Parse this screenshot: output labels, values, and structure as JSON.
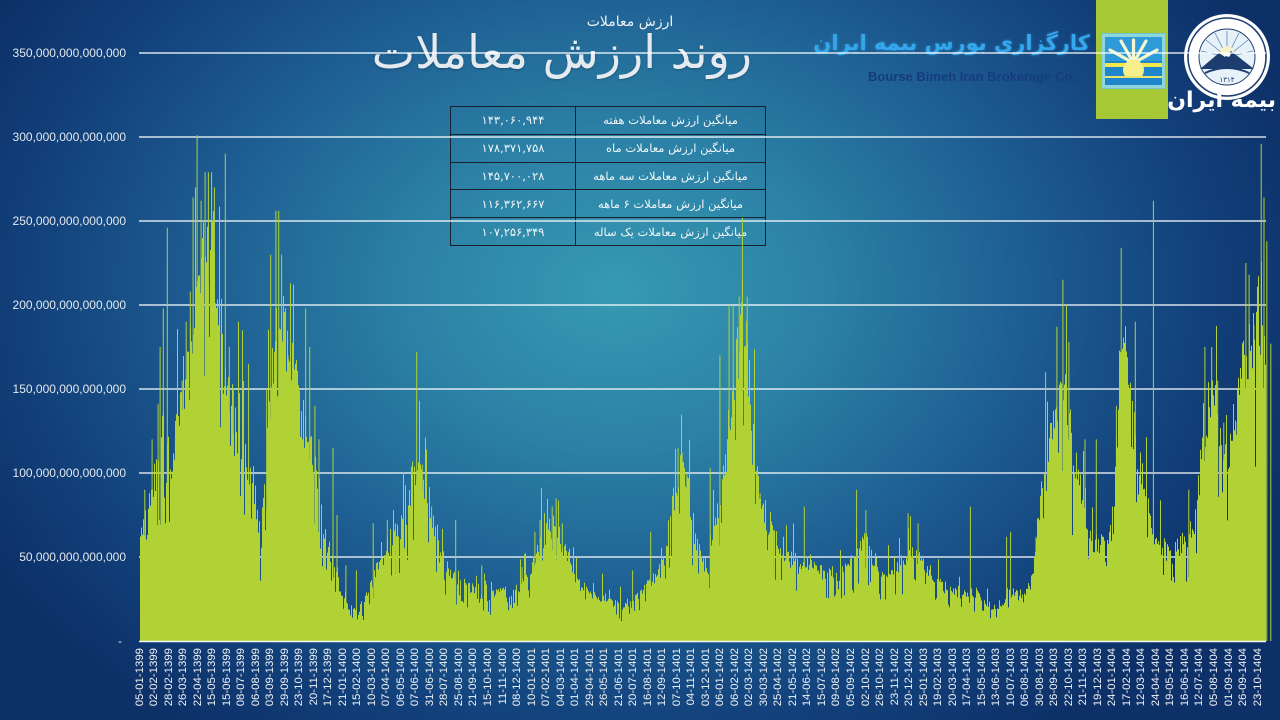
{
  "header": {
    "subtitle": "ارزش معاملات",
    "title": "روند ارزش معاملات"
  },
  "brand": {
    "name_fa": "کارگزاری بورس بیمه ایران",
    "name_en": "Bourse Bimeh Iran Brokerage Co.",
    "parent_logo_text": "بیمه ایران",
    "parent_logo_year": "۱۳۱۴",
    "colors": {
      "brand_green": "#a5c834",
      "brand_cyan": "#33a8ee",
      "brand_navy": "#163c7c"
    }
  },
  "stats_table": {
    "rows": [
      {
        "label": "میانگین ارزش معاملات هفته",
        "value": "۱۴۳,۰۶۰,۹۴۴"
      },
      {
        "label": "میانگین ارزش معاملات ماه",
        "value": "۱۷۸,۳۷۱,۷۵۸"
      },
      {
        "label": "میانگین ارزش معاملات سه ماهه",
        "value": "۱۴۵,۷۰۰,۰۲۸"
      },
      {
        "label": "میانگین ارزش معاملات ۶ ماهه",
        "value": "۱۱۶,۳۶۲,۶۶۷"
      },
      {
        "label": "میانگین ارزش معاملات یک ساله",
        "value": "۱۰۷,۲۵۶,۳۴۹"
      }
    ]
  },
  "chart_data": {
    "type": "bar",
    "title": "ارزش معاملات",
    "xlabel": "",
    "ylabel": "",
    "ylim": [
      0,
      350000000000000
    ],
    "grid": true,
    "legend": null,
    "colors": {
      "bar": "#b0d234",
      "gridline": "#ffffff",
      "axis_text": "#e3e9ef"
    },
    "y_ticks": [
      0,
      50000000000000,
      100000000000000,
      150000000000000,
      200000000000000,
      250000000000000,
      300000000000000,
      350000000000000
    ],
    "y_tick_labels": [
      "-",
      "50,000,000,000,000",
      "100,000,000,000,000",
      "150,000,000,000,000",
      "200,000,000,000,000",
      "250,000,000,000,000",
      "300,000,000,000,000",
      "350,000,000,000,000"
    ],
    "x_tick_labels": [
      "05-01-1399",
      "02-02-1399",
      "28-02-1399",
      "26-03-1399",
      "22-04-1399",
      "15-05-1399",
      "15-06-1399",
      "08-07-1399",
      "06-08-1399",
      "03-09-1399",
      "29-09-1399",
      "23-10-1399",
      "20-11-1399",
      "17-12-1399",
      "21-01-1400",
      "15-02-1400",
      "10-03-1400",
      "07-04-1400",
      "06-05-1400",
      "07-06-1400",
      "31-06-1400",
      "28-07-1400",
      "25-08-1400",
      "21-09-1400",
      "15-10-1400",
      "11-11-1400",
      "08-12-1400",
      "10-01-1401",
      "07-02-1401",
      "04-03-1401",
      "01-04-1401",
      "29-04-1401",
      "26-05-1401",
      "21-06-1401",
      "20-07-1401",
      "16-08-1401",
      "12-09-1401",
      "07-10-1401",
      "04-11-1401",
      "03-12-1401",
      "06-01-1402",
      "06-02-1402",
      "02-03-1402",
      "30-03-1402",
      "25-04-1402",
      "21-05-1402",
      "14-06-1402",
      "15-07-1402",
      "09-08-1402",
      "05-09-1402",
      "02-10-1402",
      "26-10-1402",
      "23-11-1402",
      "20-12-1402",
      "25-01-1403",
      "19-02-1403",
      "20-03-1403",
      "17-04-1403",
      "15-05-1403",
      "13-06-1403",
      "10-07-1403",
      "06-08-1403",
      "30-08-1403",
      "26-09-1403",
      "22-10-1403",
      "21-11-1403",
      "19-12-1403",
      "24-01-1404",
      "17-02-1404",
      "12-03-1404",
      "24-04-1404",
      "19-05-1404",
      "16-06-1404",
      "12-07-1404",
      "05-08-1404",
      "01-09-1404",
      "26-09-1404",
      "23-10-1404"
    ],
    "series": [
      {
        "name": "ارزش معاملات",
        "value_scale": 1000000000000,
        "sampling": "141 evenly spaced samples across the full x-axis (approximate envelope of daily bars)",
        "values": [
          60,
          80,
          100,
          130,
          105,
          140,
          175,
          215,
          235,
          240,
          180,
          130,
          115,
          110,
          95,
          58,
          140,
          190,
          185,
          160,
          135,
          120,
          100,
          60,
          55,
          25,
          20,
          18,
          25,
          38,
          48,
          60,
          65,
          70,
          105,
          95,
          75,
          62,
          45,
          40,
          35,
          32,
          28,
          26,
          28,
          30,
          28,
          32,
          38,
          48,
          60,
          68,
          62,
          50,
          38,
          30,
          28,
          25,
          26,
          22,
          20,
          22,
          28,
          35,
          38,
          45,
          75,
          100,
          95,
          60,
          45,
          55,
          80,
          110,
          160,
          200,
          135,
          85,
          72,
          62,
          50,
          48,
          44,
          48,
          42,
          40,
          38,
          40,
          42,
          55,
          60,
          50,
          42,
          40,
          42,
          48,
          55,
          50,
          42,
          35,
          32,
          30,
          28,
          30,
          28,
          24,
          20,
          22,
          28,
          30,
          28,
          38,
          90,
          115,
          140,
          150,
          110,
          90,
          62,
          58,
          60,
          70,
          190,
          145,
          110,
          85,
          65,
          55,
          50,
          55,
          62,
          70,
          110,
          150,
          130,
          105,
          120,
          160,
          175,
          200,
          150
        ]
      }
    ],
    "spikes": [
      [
        0.6,
        90
      ],
      [
        1.5,
        120
      ],
      [
        2.25,
        141
      ],
      [
        2.5,
        175
      ],
      [
        2.9,
        198
      ],
      [
        3.4,
        246
      ],
      [
        4.4,
        120
      ],
      [
        5.25,
        155
      ],
      [
        5.75,
        190
      ],
      [
        6.25,
        208
      ],
      [
        6.6,
        264
      ],
      [
        6.9,
        270
      ],
      [
        7.1,
        301
      ],
      [
        7.6,
        262
      ],
      [
        8.1,
        279
      ],
      [
        8.5,
        279
      ],
      [
        8.9,
        279
      ],
      [
        9.25,
        270
      ],
      [
        9.9,
        200
      ],
      [
        10.6,
        290
      ],
      [
        11.1,
        175
      ],
      [
        11.6,
        150
      ],
      [
        12.25,
        190
      ],
      [
        12.75,
        185
      ],
      [
        13.5,
        165
      ],
      [
        15.75,
        150
      ],
      [
        16.25,
        230
      ],
      [
        16.9,
        256
      ],
      [
        17.25,
        256
      ],
      [
        17.6,
        230
      ],
      [
        18.4,
        170
      ],
      [
        18.9,
        155
      ],
      [
        19.5,
        160
      ],
      [
        20.6,
        198
      ],
      [
        21.1,
        175
      ],
      [
        21.75,
        140
      ],
      [
        22.25,
        120
      ],
      [
        24,
        115
      ],
      [
        24.5,
        75
      ],
      [
        25.6,
        45
      ],
      [
        26.9,
        42
      ],
      [
        29,
        70
      ],
      [
        30.75,
        72
      ],
      [
        31.75,
        70
      ],
      [
        34.4,
        172
      ],
      [
        34.75,
        143
      ],
      [
        35.1,
        105
      ],
      [
        36.25,
        80
      ],
      [
        39.25,
        72
      ],
      [
        42.5,
        45
      ],
      [
        47.5,
        44
      ],
      [
        49.1,
        65
      ],
      [
        49.75,
        72
      ],
      [
        51.25,
        80
      ],
      [
        51.75,
        85
      ],
      [
        52.5,
        70
      ],
      [
        53.4,
        55
      ],
      [
        57.5,
        40
      ],
      [
        61.25,
        42
      ],
      [
        63.5,
        65
      ],
      [
        66.9,
        115
      ],
      [
        67.4,
        112
      ],
      [
        68,
        100
      ],
      [
        70.9,
        103
      ],
      [
        72.1,
        170
      ],
      [
        73.25,
        200
      ],
      [
        73.75,
        200
      ],
      [
        74.5,
        205
      ],
      [
        74.9,
        252
      ],
      [
        75.5,
        205
      ],
      [
        77.1,
        88
      ],
      [
        78.75,
        66
      ],
      [
        81.25,
        70
      ],
      [
        82.6,
        80
      ],
      [
        89.1,
        90
      ],
      [
        90.25,
        78
      ],
      [
        95.5,
        76
      ],
      [
        96.75,
        70
      ],
      [
        103.25,
        80
      ],
      [
        107.75,
        62
      ],
      [
        108.25,
        65
      ],
      [
        111.4,
        62
      ],
      [
        112.6,
        160
      ],
      [
        114,
        187
      ],
      [
        114.75,
        215
      ],
      [
        115.5,
        178
      ],
      [
        117.5,
        120
      ],
      [
        118.9,
        120
      ],
      [
        121.4,
        140
      ],
      [
        122,
        234
      ],
      [
        123.75,
        190
      ],
      [
        126,
        262
      ],
      [
        130.4,
        90
      ],
      [
        132.4,
        175
      ],
      [
        133.25,
        175
      ],
      [
        134,
        155
      ],
      [
        134.75,
        130
      ],
      [
        136.25,
        130
      ],
      [
        137.5,
        225
      ],
      [
        137.9,
        218
      ],
      [
        138.5,
        188
      ],
      [
        139.4,
        296
      ],
      [
        139.75,
        264
      ],
      [
        140.1,
        238
      ],
      [
        140.6,
        177
      ]
    ]
  }
}
